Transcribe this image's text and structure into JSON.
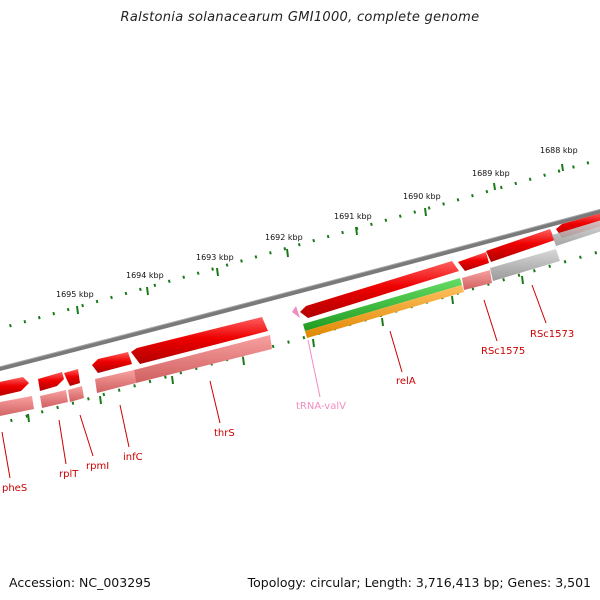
{
  "title": "Ralstonia solanacearum GMI1000, complete genome",
  "accession": "Accession: NC_003295",
  "summary": "Topology: circular; Length: 3,716,413 bp; Genes: 3,501",
  "scale_labels": [
    "1688 kbp",
    "1689 kbp",
    "1690 kbp",
    "1691 kbp",
    "1692 kbp",
    "1693 kbp",
    "1694 kbp",
    "1695 kbp"
  ],
  "gene_labels": [
    "pheS",
    "rplT",
    "rpmI",
    "infC",
    "thrS",
    "tRNA-valV",
    "relA",
    "RSc1575",
    "RSc1573"
  ],
  "colors": {
    "cds": "#ee0000",
    "cds_light": "#f08080",
    "trna": "#f08cc0",
    "rna_green": "#33bb33",
    "rna_orange": "#f39c12",
    "gray_feature": "#b8b8b8",
    "backbone": "#808080",
    "scale": "#1a7a1a",
    "label_red": "#cc0000"
  }
}
